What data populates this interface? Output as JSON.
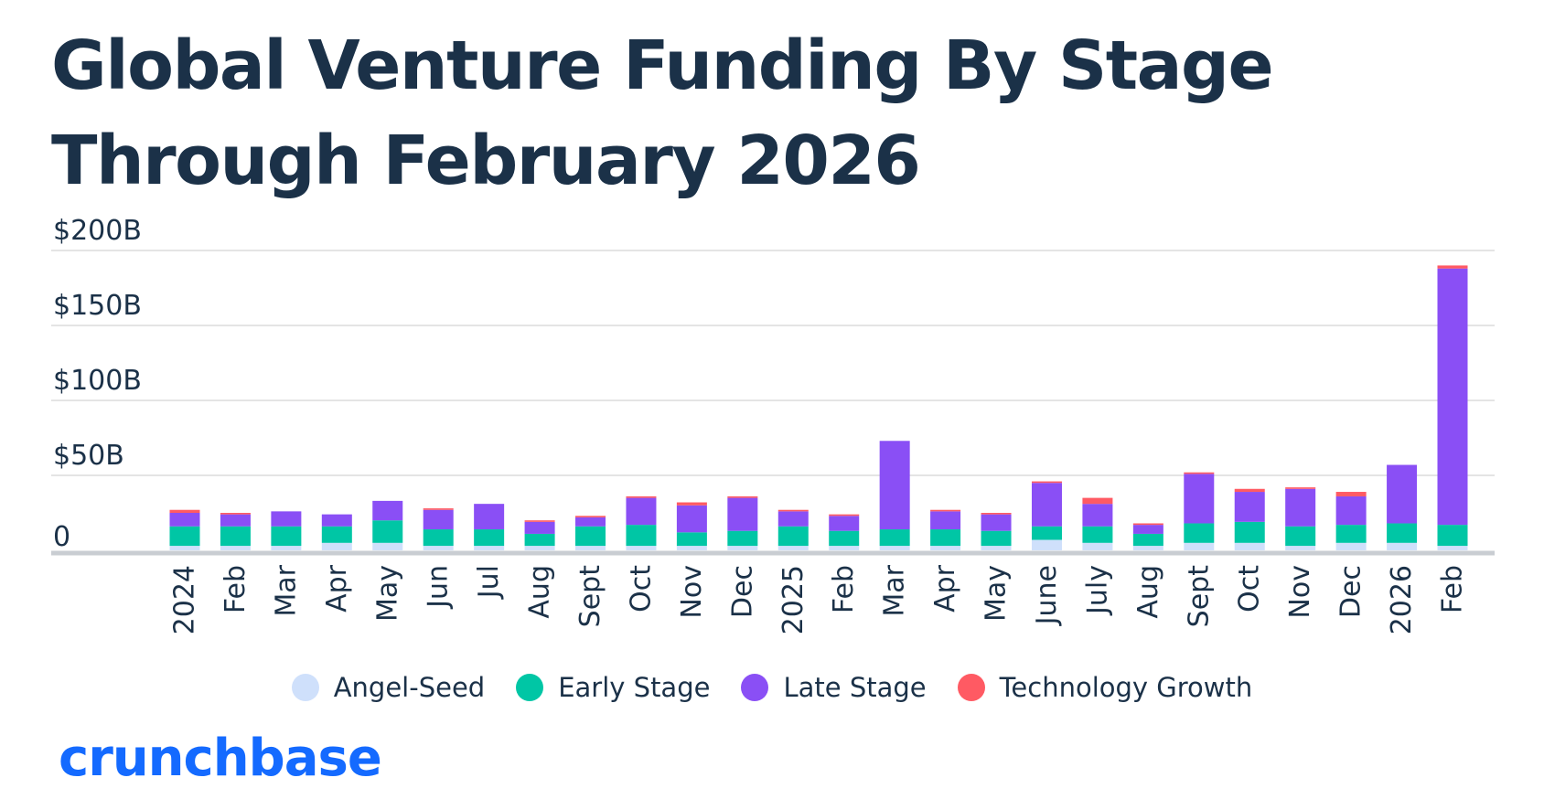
{
  "title": "Global Venture Funding By Stage Through February 2026",
  "brand": "crunchbase",
  "colors": {
    "Angel-Seed": "#cfe0fb",
    "Early Stage": "#00c6a5",
    "Late Stage": "#8a4ff5",
    "Technology Growth": "#ff5a63",
    "text": "#1b3148",
    "brand": "#146aff",
    "grid": "#e4e4e4",
    "axis": "#c9cdd2"
  },
  "chart_data": {
    "type": "bar",
    "stacked": true,
    "title": "Global Venture Funding By Stage Through February 2026",
    "xlabel": "",
    "ylabel": "",
    "ylim": [
      0,
      200
    ],
    "yticks": [
      0,
      50,
      100,
      150,
      200
    ],
    "ytick_labels": [
      "0",
      "$50B",
      "$100B",
      "$150B",
      "$200B"
    ],
    "grid": true,
    "legend_position": "bottom",
    "categories": [
      "2024",
      "Feb",
      "Mar",
      "Apr",
      "May",
      "Jun",
      "Jul",
      "Aug",
      "Sept",
      "Oct",
      "Nov",
      "Dec",
      "2025",
      "Feb",
      "Mar",
      "Apr",
      "May",
      "June",
      "July",
      "Aug",
      "Sept",
      "Oct",
      "Nov",
      "Dec",
      "2026",
      "Feb"
    ],
    "series": [
      {
        "name": "Angel-Seed",
        "values": [
          3,
          3,
          3,
          5,
          5,
          3,
          3,
          3,
          3,
          3,
          3,
          3,
          3,
          3,
          3,
          3,
          3,
          7,
          5,
          3,
          5,
          5,
          3,
          5,
          5,
          3
        ]
      },
      {
        "name": "Early Stage",
        "values": [
          13,
          13,
          13,
          11,
          15,
          11,
          11,
          8,
          13,
          14,
          9,
          10,
          13,
          10,
          11,
          11,
          10,
          9,
          11,
          8,
          13,
          14,
          13,
          12,
          13,
          14
        ]
      },
      {
        "name": "Late Stage",
        "values": [
          9,
          8,
          10,
          8,
          13,
          13,
          17,
          8,
          6,
          18,
          18,
          22,
          10,
          10,
          59,
          12,
          11,
          29,
          15,
          6,
          33,
          20,
          25,
          19,
          39,
          171
        ]
      },
      {
        "name": "Technology Growth",
        "values": [
          2,
          1,
          0,
          0,
          0,
          1,
          0,
          1,
          1,
          1,
          2,
          1,
          1,
          1,
          0,
          1,
          1,
          1,
          4,
          1,
          1,
          2,
          1,
          3,
          0,
          2
        ]
      }
    ]
  }
}
